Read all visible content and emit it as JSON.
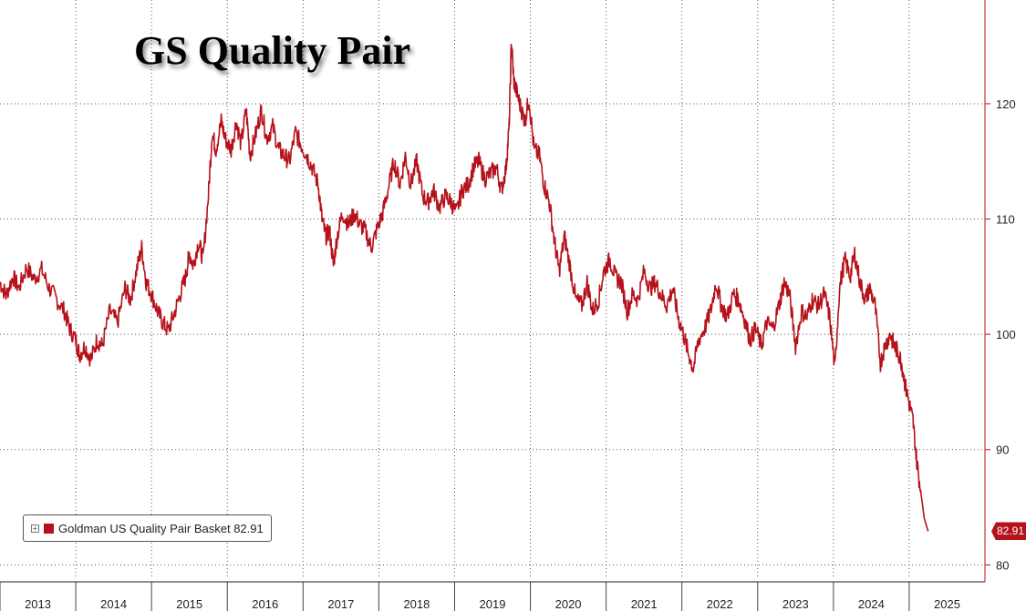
{
  "chart_data": {
    "type": "line",
    "title": "GS Quality Pair",
    "xlabel": "",
    "ylabel": "",
    "x_tick_labels": [
      "2013",
      "2014",
      "2015",
      "2016",
      "2017",
      "2018",
      "2019",
      "2020",
      "2021",
      "2022",
      "2023",
      "2024",
      "2025"
    ],
    "y_tick_labels": [
      "80",
      "90",
      "100",
      "110",
      "120"
    ],
    "ylim": [
      79,
      129
    ],
    "xlim": [
      2013.0,
      2026.0
    ],
    "grid": "dotted",
    "legend": "bottom-left",
    "last_value_label": "82.91",
    "series": [
      {
        "name": "Goldman US Quality Pair Basket",
        "legend_label": "Goldman US Quality Pair Basket 82.91",
        "color": "#b5121b",
        "points": [
          [
            2013.0,
            104.5
          ],
          [
            2013.08,
            103.4
          ],
          [
            2013.17,
            105.0
          ],
          [
            2013.25,
            104.0
          ],
          [
            2013.35,
            105.8
          ],
          [
            2013.45,
            104.8
          ],
          [
            2013.55,
            105.6
          ],
          [
            2013.65,
            104.0
          ],
          [
            2013.75,
            103.0
          ],
          [
            2013.85,
            102.0
          ],
          [
            2013.92,
            100.5
          ],
          [
            2014.0,
            99.5
          ],
          [
            2014.05,
            98.2
          ],
          [
            2014.12,
            99.0
          ],
          [
            2014.2,
            97.8
          ],
          [
            2014.28,
            99.5
          ],
          [
            2014.35,
            99.0
          ],
          [
            2014.45,
            102.0
          ],
          [
            2014.55,
            101.0
          ],
          [
            2014.65,
            104.0
          ],
          [
            2014.72,
            103.0
          ],
          [
            2014.8,
            105.5
          ],
          [
            2014.87,
            107.5
          ],
          [
            2014.93,
            104.5
          ],
          [
            2015.0,
            103.5
          ],
          [
            2015.08,
            102.0
          ],
          [
            2015.15,
            101.0
          ],
          [
            2015.22,
            100.3
          ],
          [
            2015.3,
            101.8
          ],
          [
            2015.38,
            103.5
          ],
          [
            2015.45,
            105.0
          ],
          [
            2015.5,
            107.0
          ],
          [
            2015.55,
            106.0
          ],
          [
            2015.62,
            108.0
          ],
          [
            2015.68,
            106.5
          ],
          [
            2015.75,
            112.0
          ],
          [
            2015.8,
            117.5
          ],
          [
            2015.85,
            116.0
          ],
          [
            2015.92,
            118.5
          ],
          [
            2015.97,
            117.0
          ],
          [
            2016.05,
            116.0
          ],
          [
            2016.12,
            118.5
          ],
          [
            2016.18,
            116.5
          ],
          [
            2016.25,
            119.5
          ],
          [
            2016.3,
            115.5
          ],
          [
            2016.38,
            117.5
          ],
          [
            2016.45,
            119.5
          ],
          [
            2016.52,
            117.0
          ],
          [
            2016.6,
            118.0
          ],
          [
            2016.68,
            116.0
          ],
          [
            2016.75,
            115.5
          ],
          [
            2016.82,
            115.0
          ],
          [
            2016.9,
            117.5
          ],
          [
            2016.97,
            116.5
          ],
          [
            2017.05,
            115.5
          ],
          [
            2017.12,
            114.5
          ],
          [
            2017.2,
            113.0
          ],
          [
            2017.25,
            110.0
          ],
          [
            2017.3,
            108.5
          ],
          [
            2017.35,
            109.0
          ],
          [
            2017.4,
            106.0
          ],
          [
            2017.45,
            108.5
          ],
          [
            2017.52,
            110.5
          ],
          [
            2017.6,
            109.5
          ],
          [
            2017.68,
            110.5
          ],
          [
            2017.75,
            109.5
          ],
          [
            2017.82,
            109.0
          ],
          [
            2017.9,
            107.5
          ],
          [
            2017.97,
            109.0
          ],
          [
            2018.05,
            110.5
          ],
          [
            2018.12,
            112.5
          ],
          [
            2018.2,
            115.0
          ],
          [
            2018.28,
            113.0
          ],
          [
            2018.35,
            115.5
          ],
          [
            2018.42,
            113.0
          ],
          [
            2018.5,
            115.0
          ],
          [
            2018.58,
            112.0
          ],
          [
            2018.65,
            111.5
          ],
          [
            2018.72,
            112.5
          ],
          [
            2018.8,
            111.0
          ],
          [
            2018.88,
            112.0
          ],
          [
            2018.95,
            111.5
          ],
          [
            2019.02,
            110.5
          ],
          [
            2019.1,
            112.5
          ],
          [
            2019.18,
            113.0
          ],
          [
            2019.25,
            114.5
          ],
          [
            2019.32,
            115.0
          ],
          [
            2019.4,
            113.5
          ],
          [
            2019.48,
            114.0
          ],
          [
            2019.55,
            114.5
          ],
          [
            2019.62,
            112.5
          ],
          [
            2019.68,
            114.5
          ],
          [
            2019.72,
            118.0
          ],
          [
            2019.75,
            125.5
          ],
          [
            2019.78,
            122.0
          ],
          [
            2019.82,
            121.0
          ],
          [
            2019.88,
            119.5
          ],
          [
            2019.93,
            118.5
          ],
          [
            2019.98,
            120.5
          ],
          [
            2020.05,
            116.0
          ],
          [
            2020.12,
            115.5
          ],
          [
            2020.18,
            113.0
          ],
          [
            2020.25,
            111.5
          ],
          [
            2020.32,
            108.0
          ],
          [
            2020.38,
            105.5
          ],
          [
            2020.45,
            108.5
          ],
          [
            2020.52,
            106.0
          ],
          [
            2020.6,
            103.0
          ],
          [
            2020.68,
            102.5
          ],
          [
            2020.75,
            104.5
          ],
          [
            2020.82,
            102.0
          ],
          [
            2020.9,
            103.0
          ],
          [
            2020.97,
            105.5
          ],
          [
            2021.05,
            106.5
          ],
          [
            2021.12,
            105.0
          ],
          [
            2021.2,
            104.5
          ],
          [
            2021.28,
            102.0
          ],
          [
            2021.35,
            103.5
          ],
          [
            2021.42,
            103.0
          ],
          [
            2021.5,
            105.5
          ],
          [
            2021.58,
            104.0
          ],
          [
            2021.65,
            104.5
          ],
          [
            2021.72,
            103.5
          ],
          [
            2021.8,
            102.5
          ],
          [
            2021.88,
            104.0
          ],
          [
            2021.95,
            101.5
          ],
          [
            2022.02,
            100.0
          ],
          [
            2022.08,
            98.5
          ],
          [
            2022.15,
            97.0
          ],
          [
            2022.22,
            99.5
          ],
          [
            2022.3,
            100.5
          ],
          [
            2022.38,
            102.0
          ],
          [
            2022.45,
            104.5
          ],
          [
            2022.52,
            102.5
          ],
          [
            2022.6,
            101.5
          ],
          [
            2022.68,
            103.5
          ],
          [
            2022.75,
            103.0
          ],
          [
            2022.82,
            101.5
          ],
          [
            2022.9,
            99.5
          ],
          [
            2022.97,
            100.5
          ],
          [
            2023.05,
            99.0
          ],
          [
            2023.12,
            101.0
          ],
          [
            2023.2,
            100.5
          ],
          [
            2023.28,
            102.5
          ],
          [
            2023.35,
            104.5
          ],
          [
            2023.42,
            103.5
          ],
          [
            2023.5,
            99.0
          ],
          [
            2023.58,
            102.0
          ],
          [
            2023.65,
            101.5
          ],
          [
            2023.72,
            103.0
          ],
          [
            2023.8,
            102.5
          ],
          [
            2023.88,
            103.5
          ],
          [
            2023.95,
            101.5
          ],
          [
            2024.02,
            97.0
          ],
          [
            2024.08,
            104.0
          ],
          [
            2024.15,
            106.5
          ],
          [
            2024.22,
            105.0
          ],
          [
            2024.28,
            107.0
          ],
          [
            2024.35,
            104.5
          ],
          [
            2024.42,
            103.0
          ],
          [
            2024.48,
            104.0
          ],
          [
            2024.55,
            102.5
          ],
          [
            2024.62,
            97.5
          ],
          [
            2024.68,
            99.0
          ],
          [
            2024.75,
            100.0
          ],
          [
            2024.8,
            99.0
          ],
          [
            2024.85,
            98.5
          ],
          [
            2024.9,
            97.5
          ],
          [
            2024.95,
            95.5
          ],
          [
            2025.0,
            94.0
          ],
          [
            2025.05,
            92.5
          ],
          [
            2025.1,
            89.0
          ],
          [
            2025.15,
            86.5
          ],
          [
            2025.2,
            84.0
          ],
          [
            2025.25,
            82.91
          ]
        ]
      }
    ]
  }
}
